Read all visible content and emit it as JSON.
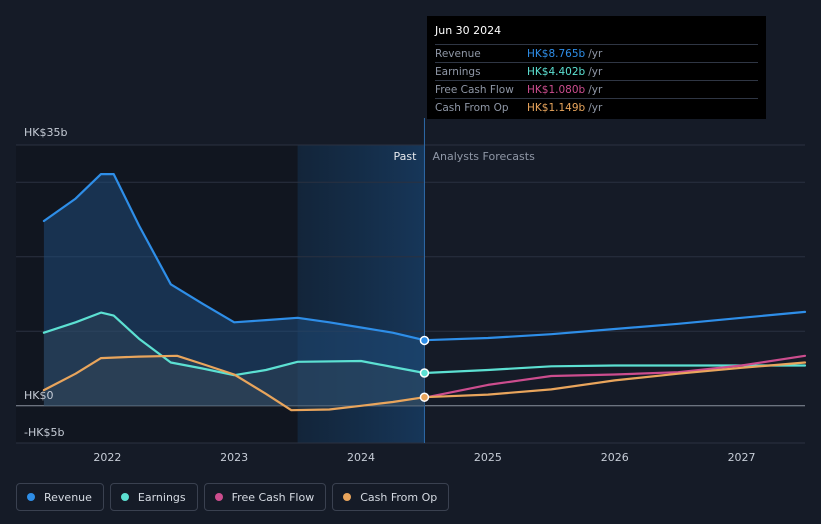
{
  "chart_data": {
    "type": "line",
    "y_axis": {
      "top_label": "HK$35b",
      "zero_label": "HK$0",
      "bottom_label": "-HK$5b",
      "ylim": [
        -5,
        35
      ]
    },
    "x_axis": {
      "ticks": [
        "2022",
        "2023",
        "2024",
        "2025",
        "2026",
        "2027"
      ],
      "xlim": [
        2021.28,
        2027.5
      ]
    },
    "sections": {
      "past_label": "Past",
      "forecast_label": "Analysts Forecasts",
      "divider_x": 2024.5,
      "highlight_start": 2023.5
    },
    "series": [
      {
        "name": "Revenue",
        "color": "#2e8ee8",
        "filled": true,
        "points": [
          [
            2021.5,
            24.8
          ],
          [
            2021.75,
            27.8
          ],
          [
            2021.95,
            31.1
          ],
          [
            2022.05,
            31.1
          ],
          [
            2022.25,
            24.2
          ],
          [
            2022.5,
            16.3
          ],
          [
            2022.75,
            13.7
          ],
          [
            2023.0,
            11.2
          ],
          [
            2023.25,
            11.5
          ],
          [
            2023.5,
            11.8
          ],
          [
            2023.75,
            11.2
          ],
          [
            2024.0,
            10.5
          ],
          [
            2024.25,
            9.8
          ],
          [
            2024.5,
            8.8
          ],
          [
            2025.0,
            9.1
          ],
          [
            2025.5,
            9.6
          ],
          [
            2026.0,
            10.3
          ],
          [
            2026.5,
            11.0
          ],
          [
            2027.0,
            11.8
          ],
          [
            2027.5,
            12.6
          ]
        ]
      },
      {
        "name": "Earnings",
        "color": "#5ce0d2",
        "filled": true,
        "points": [
          [
            2021.5,
            9.8
          ],
          [
            2021.75,
            11.2
          ],
          [
            2021.95,
            12.5
          ],
          [
            2022.05,
            12.1
          ],
          [
            2022.25,
            9.0
          ],
          [
            2022.5,
            5.8
          ],
          [
            2022.75,
            5.0
          ],
          [
            2023.0,
            4.1
          ],
          [
            2023.25,
            4.8
          ],
          [
            2023.5,
            5.9
          ],
          [
            2024.0,
            6.0
          ],
          [
            2024.25,
            5.2
          ],
          [
            2024.5,
            4.4
          ],
          [
            2025.0,
            4.8
          ],
          [
            2025.5,
            5.3
          ],
          [
            2026.0,
            5.4
          ],
          [
            2026.5,
            5.4
          ],
          [
            2027.0,
            5.4
          ],
          [
            2027.5,
            5.4
          ]
        ]
      },
      {
        "name": "Free Cash Flow",
        "color": "#cc4d8e",
        "filled": false,
        "points": [
          [
            2024.5,
            1.08
          ],
          [
            2025.0,
            2.8
          ],
          [
            2025.5,
            4.0
          ],
          [
            2026.0,
            4.2
          ],
          [
            2026.5,
            4.5
          ],
          [
            2027.0,
            5.4
          ],
          [
            2027.5,
            6.7
          ]
        ]
      },
      {
        "name": "Cash From Op",
        "color": "#e9a55c",
        "filled": true,
        "points": [
          [
            2021.5,
            2.1
          ],
          [
            2021.75,
            4.3
          ],
          [
            2021.95,
            6.4
          ],
          [
            2022.25,
            6.6
          ],
          [
            2022.55,
            6.7
          ],
          [
            2022.75,
            5.6
          ],
          [
            2023.0,
            4.2
          ],
          [
            2023.25,
            1.6
          ],
          [
            2023.45,
            -0.6
          ],
          [
            2023.75,
            -0.5
          ],
          [
            2024.0,
            0.0
          ],
          [
            2024.25,
            0.5
          ],
          [
            2024.5,
            1.15
          ],
          [
            2025.0,
            1.5
          ],
          [
            2025.5,
            2.2
          ],
          [
            2026.0,
            3.4
          ],
          [
            2026.5,
            4.3
          ],
          [
            2027.0,
            5.1
          ],
          [
            2027.5,
            5.8
          ]
        ]
      }
    ],
    "markers": [
      {
        "series": "Revenue",
        "x": 2024.5,
        "y": 8.765
      },
      {
        "series": "Earnings",
        "x": 2024.5,
        "y": 4.402
      },
      {
        "series": "Cash From Op",
        "x": 2024.5,
        "y": 1.149
      }
    ]
  },
  "tooltip": {
    "date": "Jun 30 2024",
    "unit": "/yr",
    "rows": [
      {
        "label": "Revenue",
        "value": "HK$8.765b",
        "color": "#2e8ee8"
      },
      {
        "label": "Earnings",
        "value": "HK$4.402b",
        "color": "#5ce0d2"
      },
      {
        "label": "Free Cash Flow",
        "value": "HK$1.080b",
        "color": "#cc4d8e"
      },
      {
        "label": "Cash From Op",
        "value": "HK$1.149b",
        "color": "#e9a55c"
      }
    ]
  },
  "legend": [
    {
      "label": "Revenue",
      "color": "#2e8ee8"
    },
    {
      "label": "Earnings",
      "color": "#5ce0d2"
    },
    {
      "label": "Free Cash Flow",
      "color": "#cc4d8e"
    },
    {
      "label": "Cash From Op",
      "color": "#e9a55c"
    }
  ]
}
